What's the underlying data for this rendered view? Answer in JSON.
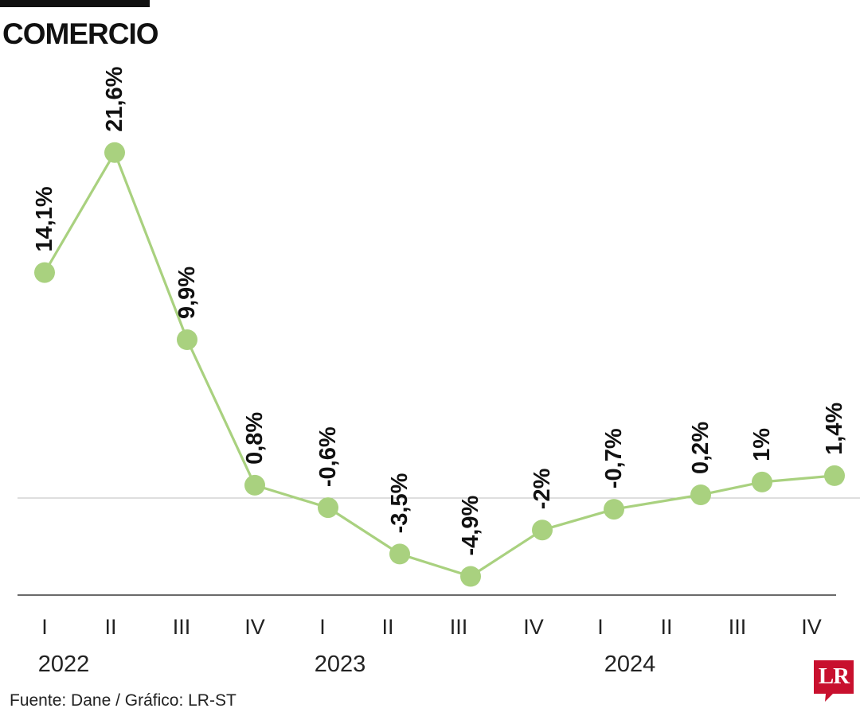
{
  "title": "COMERCIO",
  "source": "Fuente: Dane / Gráfico: LR-ST",
  "logo_text": "LR",
  "colors": {
    "line": "#a9d17f",
    "marker": "#a9d17f",
    "zero_line": "#bdbdbd",
    "axis": "#111111",
    "logo": "#c8102e"
  },
  "chart_data": {
    "type": "line",
    "categories": [
      "I",
      "II",
      "III",
      "IV",
      "I",
      "II",
      "III",
      "IV",
      "I",
      "II",
      "III",
      "IV"
    ],
    "years": [
      {
        "label": "2022",
        "start": 0,
        "end": 3
      },
      {
        "label": "2023",
        "start": 4,
        "end": 7
      },
      {
        "label": "2024",
        "start": 8,
        "end": 11
      }
    ],
    "series": [
      {
        "values": [
          14.1,
          21.6,
          9.9,
          0.8,
          -0.6,
          -3.5,
          -4.9,
          -2.0,
          -0.7,
          0.2,
          1.0,
          1.4
        ],
        "labels": [
          "14,1%",
          "21,6%",
          "9,9%",
          "0,8%",
          "-0,6%",
          "-3,5%",
          "-4,9%",
          "-2%",
          "-0,7%",
          "0,2%",
          "1%",
          "1,4%"
        ]
      }
    ],
    "ylim": [
      -6.1,
      23.4
    ],
    "grid": false,
    "zero_line": true
  }
}
